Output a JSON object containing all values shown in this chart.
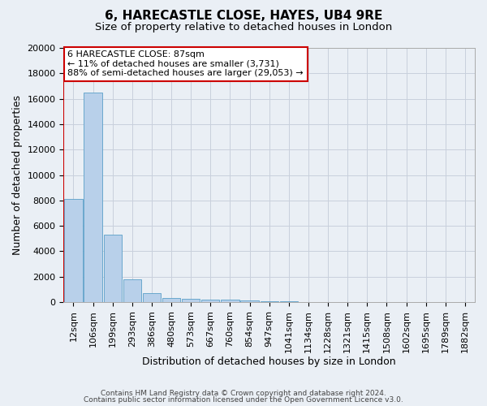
{
  "title": "6, HARECASTLE CLOSE, HAYES, UB4 9RE",
  "subtitle": "Size of property relative to detached houses in London",
  "xlabel": "Distribution of detached houses by size in London",
  "ylabel": "Number of detached properties",
  "categories": [
    "12sqm",
    "106sqm",
    "199sqm",
    "293sqm",
    "386sqm",
    "480sqm",
    "573sqm",
    "667sqm",
    "760sqm",
    "854sqm",
    "947sqm",
    "1041sqm",
    "1134sqm",
    "1228sqm",
    "1321sqm",
    "1415sqm",
    "1508sqm",
    "1602sqm",
    "1695sqm",
    "1789sqm",
    "1882sqm"
  ],
  "values": [
    8100,
    16500,
    5300,
    1800,
    700,
    350,
    270,
    200,
    200,
    150,
    80,
    50,
    30,
    20,
    15,
    10,
    8,
    6,
    5,
    4,
    3
  ],
  "bar_color": "#b8d0ea",
  "bar_edge_color": "#5a9fc8",
  "grid_color": "#c8d0dc",
  "background_color": "#eaeff5",
  "annotation_line1": "6 HARECASTLE CLOSE: 87sqm",
  "annotation_line2": "← 11% of detached houses are smaller (3,731)",
  "annotation_line3": "88% of semi-detached houses are larger (29,053) →",
  "annotation_box_facecolor": "#ffffff",
  "annotation_box_edgecolor": "#cc0000",
  "red_line_x": -0.5,
  "ylim_max": 20000,
  "yticks": [
    0,
    2000,
    4000,
    6000,
    8000,
    10000,
    12000,
    14000,
    16000,
    18000,
    20000
  ],
  "footer1": "Contains HM Land Registry data © Crown copyright and database right 2024.",
  "footer2": "Contains public sector information licensed under the Open Government Licence v3.0.",
  "title_fontsize": 11,
  "subtitle_fontsize": 9.5,
  "ylabel_fontsize": 9,
  "xlabel_fontsize": 9,
  "tick_fontsize": 8,
  "annot_fontsize": 8,
  "footer_fontsize": 6.5
}
